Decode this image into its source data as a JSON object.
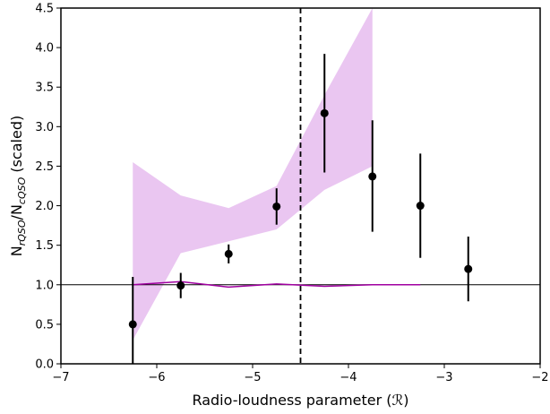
{
  "chart_data": {
    "type": "scatter",
    "xlabel": "Radio-loudness parameter (ℛ)",
    "ylabel": {
      "base1": "N",
      "sub1": "rQSO",
      "slash": "/N",
      "sub2": "cQSO",
      "tail": " (scaled)"
    },
    "xlim": [
      -7,
      -2
    ],
    "ylim": [
      0,
      4.5
    ],
    "xticks": [
      -7,
      -6,
      -5,
      -4,
      -3,
      -2
    ],
    "yticks": [
      0.0,
      0.5,
      1.0,
      1.5,
      2.0,
      2.5,
      3.0,
      3.5,
      4.0,
      4.5
    ],
    "xtick_labels": [
      "−7",
      "−6",
      "−5",
      "−4",
      "−3",
      "−2"
    ],
    "ytick_labels": [
      "0.0",
      "0.5",
      "1.0",
      "1.5",
      "2.0",
      "2.5",
      "3.0",
      "3.5",
      "4.0",
      "4.5"
    ],
    "grid": false,
    "points": {
      "x": [
        -6.25,
        -5.75,
        -5.25,
        -4.75,
        -4.25,
        -3.75,
        -3.25,
        -2.75
      ],
      "y": [
        0.5,
        0.99,
        1.39,
        1.99,
        3.17,
        2.37,
        2.0,
        1.2
      ],
      "y_low": [
        0.0,
        0.83,
        1.27,
        1.76,
        2.42,
        1.67,
        1.34,
        0.79
      ],
      "y_high": [
        1.1,
        1.15,
        1.51,
        2.22,
        3.92,
        3.08,
        2.66,
        1.61
      ],
      "color": "#000000"
    },
    "band": {
      "x": [
        -6.25,
        -5.75,
        -5.25,
        -4.75,
        -4.25,
        -3.75
      ],
      "lower": [
        0.3,
        1.4,
        1.55,
        1.7,
        2.2,
        2.5
      ],
      "upper": [
        2.55,
        2.13,
        1.97,
        2.25,
        3.4,
        4.5
      ],
      "color": "#eac6f1"
    },
    "model_line": {
      "x": [
        -6.25,
        -5.75,
        -5.25,
        -4.75,
        -4.25,
        -3.75,
        -3.25
      ],
      "y": [
        1.0,
        1.04,
        0.97,
        1.01,
        0.98,
        1.0,
        1.0
      ],
      "color": "#a000a0"
    },
    "reference_hline": {
      "y": 1.0,
      "color": "#000000"
    },
    "reference_vline": {
      "x": -4.5,
      "style": "dashed",
      "color": "#000000"
    }
  }
}
